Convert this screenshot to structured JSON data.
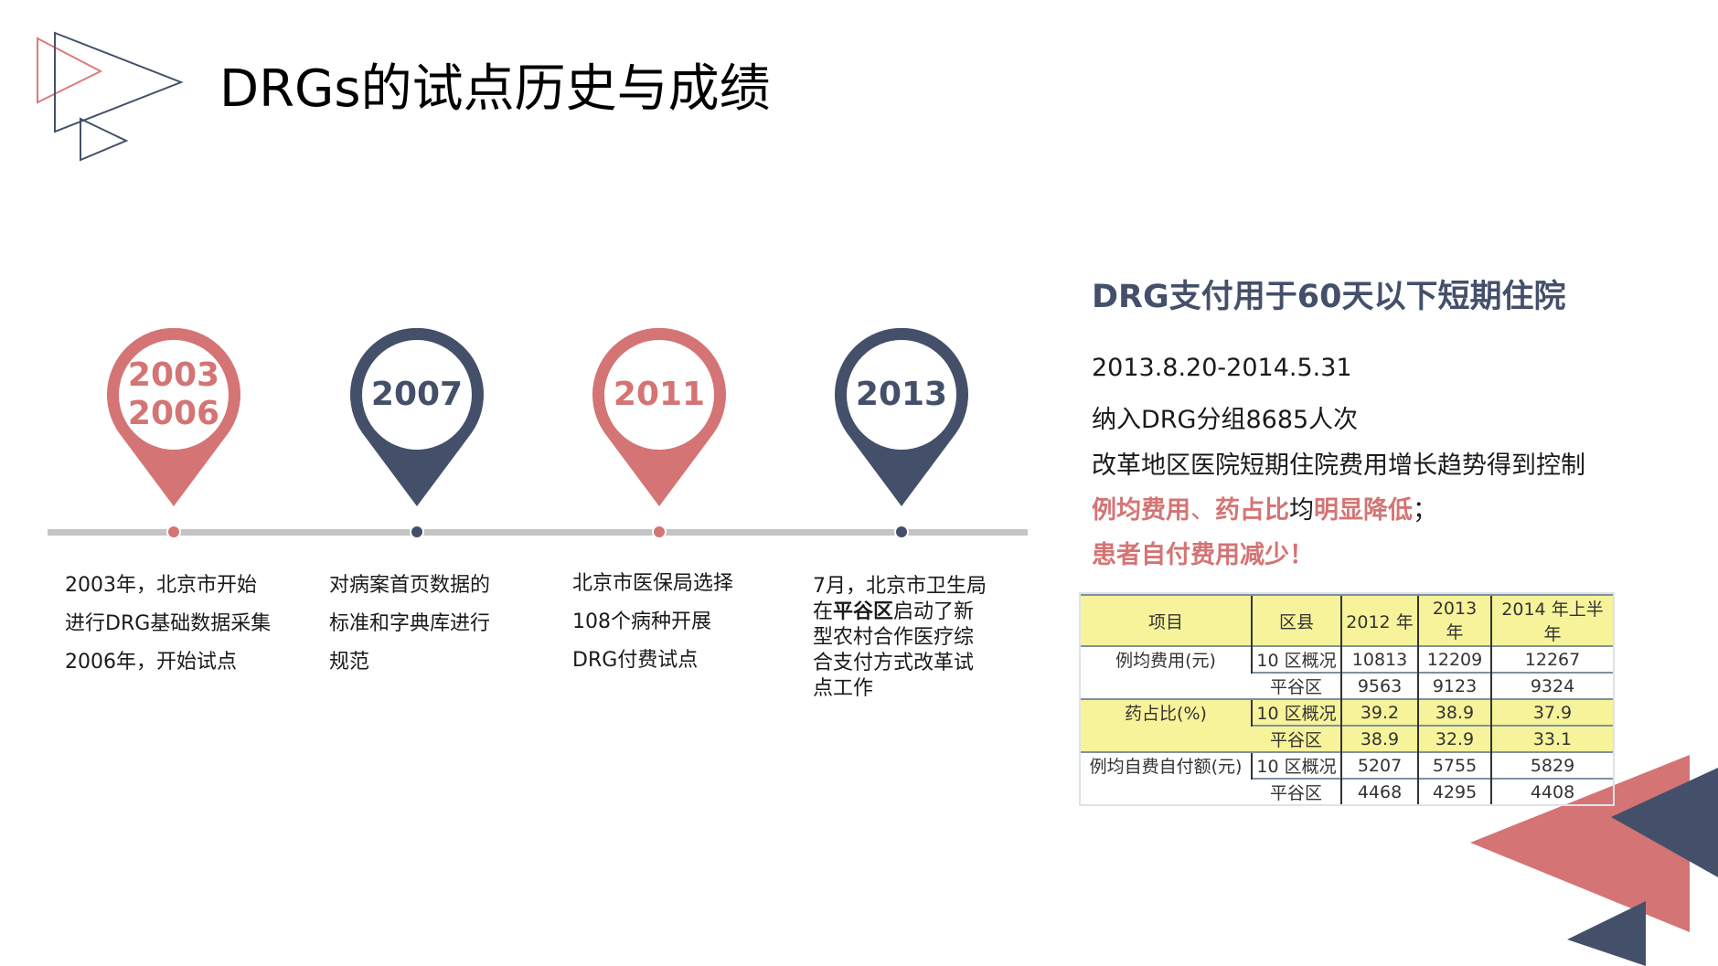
{
  "title": "DRGs的试点历史与成绩",
  "colors": {
    "pink": "#d47474",
    "navy": "#44506a",
    "highlight": "#f7f39b"
  },
  "timeline": [
    {
      "year_lines": [
        "2003",
        "2006"
      ],
      "color": "pink",
      "caption": [
        "2003年，北京市开始",
        "进行DRG基础数据采集",
        "2006年，开始试点"
      ]
    },
    {
      "year_lines": [
        "2007"
      ],
      "color": "navy",
      "caption": [
        "对病案首页数据的",
        "标准和字典库进行",
        "规范"
      ]
    },
    {
      "year_lines": [
        "2011"
      ],
      "color": "pink",
      "caption": [
        "北京市医保局选择",
        "108个病种开展",
        "DRG付费试点"
      ]
    },
    {
      "year_lines": [
        "2013"
      ],
      "color": "navy",
      "caption_parts": [
        "7月，北京市卫生局",
        "在",
        "平谷区",
        "启动了新",
        "型农村合作医疗综",
        "合支付方式改革试",
        "点工作"
      ]
    }
  ],
  "right": {
    "heading": "DRG支付用于60天以下短期住院",
    "lines": [
      "2013.8.20-2014.5.31",
      "纳入DRG分组8685人次",
      "改革地区医院短期住院费用增长趋势得到控制"
    ],
    "line4": [
      "例均费用",
      "、",
      "药占比",
      "均",
      "明显降低",
      "；"
    ],
    "line5": "患者自付费用减少！"
  },
  "table": {
    "headers": [
      "项目",
      "区县",
      "2012 年",
      "2013 年",
      "2014 年上半年"
    ],
    "groups": [
      {
        "item": "例均费用(元)",
        "rows": [
          [
            "10 区概况",
            "10813",
            "12209",
            "12267"
          ],
          [
            "平谷区",
            "9563",
            "9123",
            "9324"
          ]
        ]
      },
      {
        "item": "药占比(%)",
        "rows": [
          [
            "10 区概况",
            "39.2",
            "38.9",
            "37.9"
          ],
          [
            "平谷区",
            "38.9",
            "32.9",
            "33.1"
          ]
        ]
      },
      {
        "item": "例均自费自付额(元)",
        "rows": [
          [
            "10 区概况",
            "5207",
            "5755",
            "5829"
          ],
          [
            "平谷区",
            "4468",
            "4295",
            "4408"
          ]
        ]
      }
    ]
  }
}
